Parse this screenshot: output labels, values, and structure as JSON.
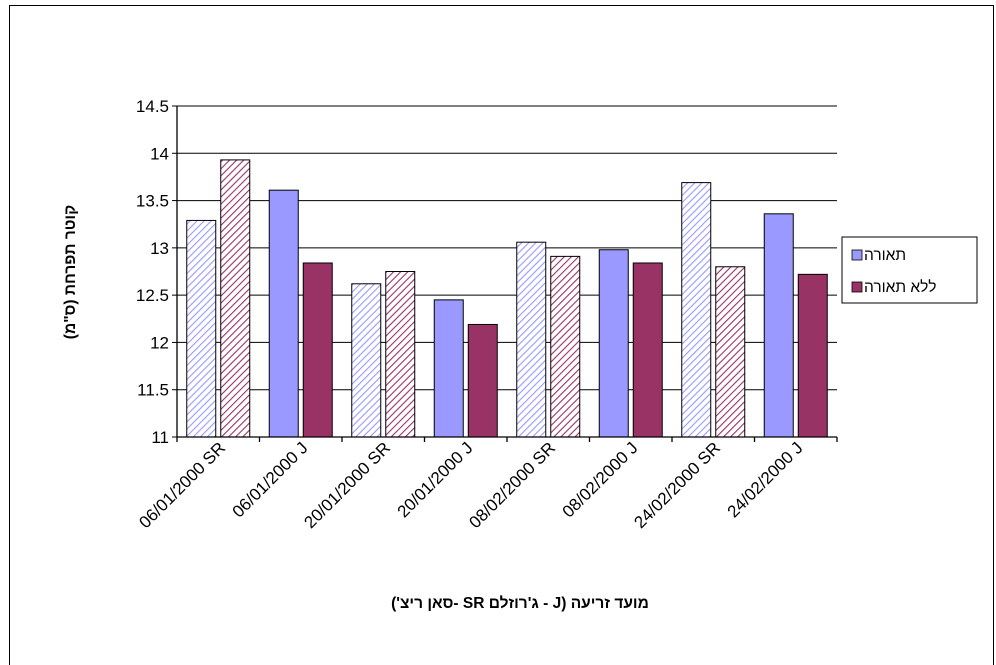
{
  "chart_data": {
    "type": "bar",
    "categories": [
      "06/01/2000 SR",
      "06/01/2000 J",
      "20/01/2000 SR",
      "20/01/2000 J",
      "08/02/2000 SR",
      "08/02/2000 J",
      "24/02/2000 SR",
      "24/02/2000 J"
    ],
    "series": [
      {
        "name": "תאורה",
        "values": [
          13.29,
          13.61,
          12.62,
          12.45,
          13.06,
          12.98,
          13.69,
          13.36
        ],
        "color": "#9999ff"
      },
      {
        "name": "ללא תאורה",
        "values": [
          13.93,
          12.84,
          12.75,
          12.19,
          12.91,
          12.84,
          12.8,
          12.72
        ],
        "color": "#993366"
      }
    ],
    "hatched": [
      true,
      false,
      true,
      false,
      true,
      false,
      true,
      false
    ],
    "xlabel": "מועד זריעה (J - ג'רוזלם SR -סאן ריצ')",
    "ylabel": "קוטר תפרחת (ס\"מ)",
    "ylim": [
      11,
      14.5
    ],
    "yticks": [
      "11",
      "11.5",
      "12",
      "12.5",
      "13",
      "13.5",
      "14",
      "14.5"
    ],
    "grid": true,
    "legend_position": "right"
  }
}
